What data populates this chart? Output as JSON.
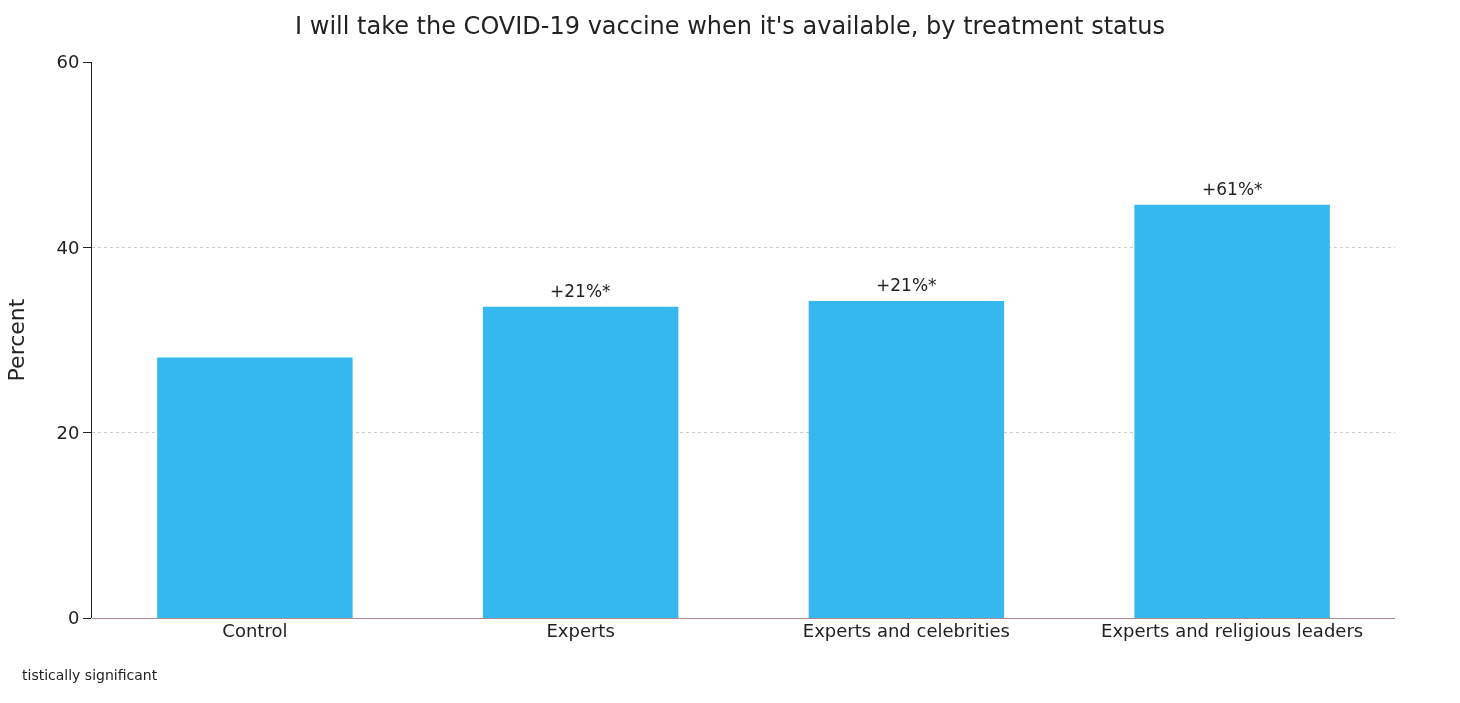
{
  "chart_data": {
    "type": "bar",
    "title": "I will take the COVID-19 vaccine when it's available, by treatment status",
    "ylabel": "Percent",
    "categories": [
      "Control",
      "Experts",
      "Experts and celebrities",
      "Experts and religious leaders"
    ],
    "values": [
      28.1,
      33.6,
      34.2,
      44.6
    ],
    "color": "#35b8ee",
    "ylim": [
      0,
      60
    ],
    "yticks": [
      0,
      20,
      40,
      60
    ],
    "grid": "y",
    "annotations": [
      {
        "text": "+21%*",
        "x": "Experts",
        "y": 33.6
      },
      {
        "text": "+21%*",
        "x": "Experts and celebrities",
        "y": 34.2
      },
      {
        "text": "+61%*",
        "x": "Experts and religious leaders",
        "y": 44.6
      },
      "tistically significant"
    ]
  }
}
